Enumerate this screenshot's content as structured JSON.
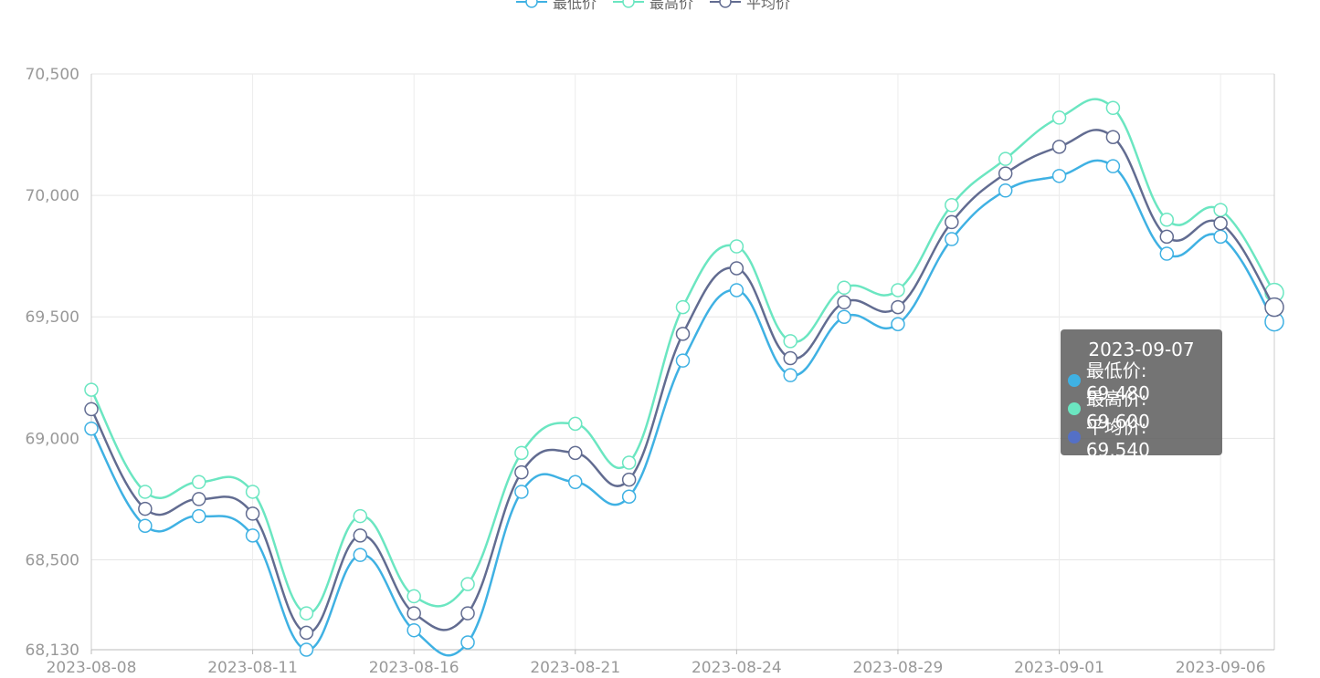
{
  "chart_data": {
    "type": "line",
    "smooth": true,
    "x": [
      "2023-08-08",
      "2023-08-09",
      "2023-08-10",
      "2023-08-11",
      "2023-08-14",
      "2023-08-15",
      "2023-08-16",
      "2023-08-17",
      "2023-08-18",
      "2023-08-21",
      "2023-08-22",
      "2023-08-23",
      "2023-08-24",
      "2023-08-25",
      "2023-08-28",
      "2023-08-29",
      "2023-08-30",
      "2023-08-31",
      "2023-09-01",
      "2023-09-04",
      "2023-09-05",
      "2023-09-06",
      "2023-09-07"
    ],
    "x_tick_labels": [
      "2023-08-08",
      "2023-08-11",
      "2023-08-16",
      "2023-08-21",
      "2023-08-24",
      "2023-08-29",
      "2023-09-01",
      "2023-09-06"
    ],
    "ylim": [
      68130,
      70500
    ],
    "y_tick_labels": [
      "68,130",
      "68,500",
      "69,000",
      "69,500",
      "70,000",
      "70,500"
    ],
    "y_tick_values": [
      68130,
      68500,
      69000,
      69500,
      70000,
      70500
    ],
    "grid": true,
    "legend_position": "top-center",
    "series": [
      {
        "name": "最低价",
        "color": "#3fb1e3",
        "values": [
          69040,
          68640,
          68680,
          68600,
          68130,
          68520,
          68210,
          68160,
          68780,
          68820,
          68760,
          69320,
          69610,
          69260,
          69500,
          69470,
          69820,
          70020,
          70080,
          70120,
          69760,
          69830,
          69480
        ]
      },
      {
        "name": "最高价",
        "color": "#6be6c1",
        "values": [
          69200,
          68780,
          68820,
          68780,
          68280,
          68680,
          68350,
          68400,
          68940,
          69060,
          68900,
          69540,
          69790,
          69400,
          69620,
          69610,
          69960,
          70150,
          70320,
          70360,
          69900,
          69940,
          69600
        ]
      },
      {
        "name": "平均价",
        "color": "#626c91",
        "values": [
          69120,
          68710,
          68750,
          68690,
          68200,
          68600,
          68280,
          68280,
          68860,
          68940,
          68830,
          69430,
          69700,
          69330,
          69560,
          69540,
          69890,
          70090,
          70200,
          70240,
          69830,
          69885,
          69540
        ]
      }
    ],
    "tooltip": {
      "title": "2023-09-07",
      "rows": [
        {
          "label": "最低价: 69,480",
          "color": "#3fb1e3"
        },
        {
          "label": "最高价: 69,600",
          "color": "#6be6c1"
        },
        {
          "label": "平均价: 69,540",
          "color": "#5470c6"
        }
      ]
    }
  }
}
